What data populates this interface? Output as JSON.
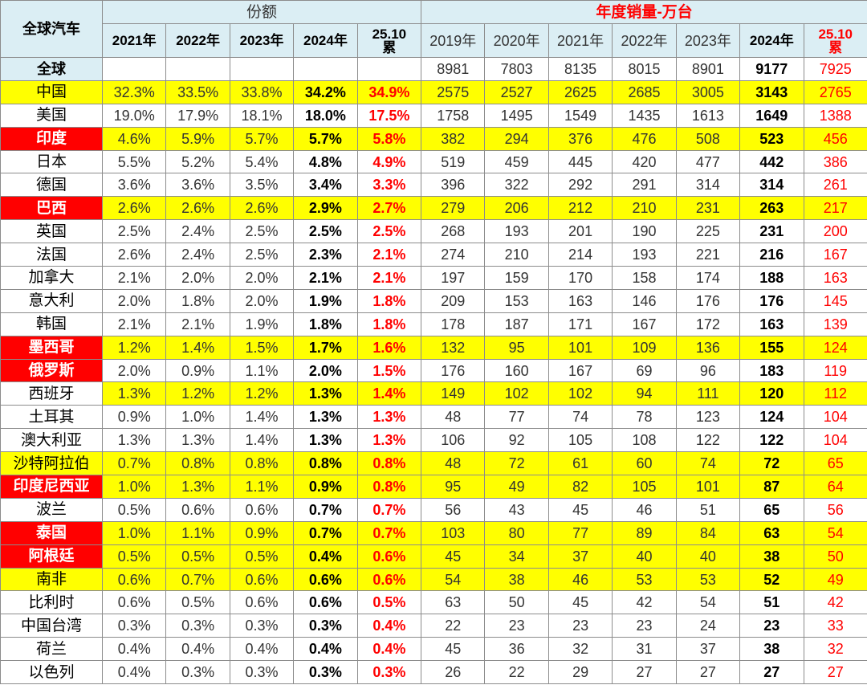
{
  "header": {
    "corner": "全球汽车",
    "share_title": "份额",
    "sales_title": "年度销量-万台",
    "share_years": [
      "2021年",
      "2022年",
      "2023年",
      "2024年",
      "25.10\n累"
    ],
    "sales_years": [
      "2019年",
      "2020年",
      "2021年",
      "2022年",
      "2023年",
      "2024年",
      "25.10\n累"
    ],
    "fill": "#dbeef4"
  },
  "world": {
    "name": "全球",
    "sales": [
      8981,
      7803,
      8135,
      8015,
      8901,
      9177,
      7925
    ]
  },
  "rows": [
    {
      "name": "中国",
      "share": [
        "32.3%",
        "33.5%",
        "33.8%",
        "34.2%",
        "34.9%"
      ],
      "sales": [
        2575,
        2527,
        2625,
        2685,
        3005,
        3143,
        2765
      ],
      "fill": "#ffff00"
    },
    {
      "name": "美国",
      "share": [
        "19.0%",
        "17.9%",
        "18.1%",
        "18.0%",
        "17.5%"
      ],
      "sales": [
        1758,
        1495,
        1549,
        1435,
        1613,
        1649,
        1388
      ]
    },
    {
      "name": "印度",
      "share": [
        "4.6%",
        "5.9%",
        "5.7%",
        "5.7%",
        "5.8%"
      ],
      "sales": [
        382,
        294,
        376,
        476,
        508,
        523,
        456
      ],
      "fill": "#ffff00",
      "name_fill": "#ff0000"
    },
    {
      "name": "日本",
      "share": [
        "5.5%",
        "5.2%",
        "5.4%",
        "4.8%",
        "4.9%"
      ],
      "sales": [
        519,
        459,
        445,
        420,
        477,
        442,
        386
      ]
    },
    {
      "name": "德国",
      "share": [
        "3.6%",
        "3.6%",
        "3.5%",
        "3.4%",
        "3.3%"
      ],
      "sales": [
        396,
        322,
        292,
        291,
        314,
        314,
        261
      ]
    },
    {
      "name": "巴西",
      "share": [
        "2.6%",
        "2.6%",
        "2.6%",
        "2.9%",
        "2.7%"
      ],
      "sales": [
        279,
        206,
        212,
        210,
        231,
        263,
        217
      ],
      "fill": "#ffff00",
      "name_fill": "#ff0000"
    },
    {
      "name": "英国",
      "share": [
        "2.5%",
        "2.4%",
        "2.5%",
        "2.5%",
        "2.5%"
      ],
      "sales": [
        268,
        193,
        201,
        190,
        225,
        231,
        200
      ]
    },
    {
      "name": "法国",
      "share": [
        "2.6%",
        "2.4%",
        "2.5%",
        "2.3%",
        "2.1%"
      ],
      "sales": [
        274,
        210,
        214,
        193,
        221,
        216,
        167
      ]
    },
    {
      "name": "加拿大",
      "share": [
        "2.1%",
        "2.0%",
        "2.0%",
        "2.1%",
        "2.1%"
      ],
      "sales": [
        197,
        159,
        170,
        158,
        174,
        188,
        163
      ]
    },
    {
      "name": "意大利",
      "share": [
        "2.0%",
        "1.8%",
        "2.0%",
        "1.9%",
        "1.8%"
      ],
      "sales": [
        209,
        153,
        163,
        146,
        176,
        176,
        145
      ]
    },
    {
      "name": "韩国",
      "share": [
        "2.1%",
        "2.1%",
        "1.9%",
        "1.8%",
        "1.8%"
      ],
      "sales": [
        178,
        187,
        171,
        167,
        172,
        163,
        139
      ]
    },
    {
      "name": "墨西哥",
      "share": [
        "1.2%",
        "1.4%",
        "1.5%",
        "1.7%",
        "1.6%"
      ],
      "sales": [
        132,
        95,
        101,
        109,
        136,
        155,
        124
      ],
      "fill": "#ffff00",
      "name_fill": "#ff0000"
    },
    {
      "name": "俄罗斯",
      "share": [
        "2.0%",
        "0.9%",
        "1.1%",
        "2.0%",
        "1.5%"
      ],
      "sales": [
        176,
        160,
        167,
        69,
        96,
        183,
        119
      ],
      "name_fill": "#ff0000"
    },
    {
      "name": "西班牙",
      "share": [
        "1.3%",
        "1.2%",
        "1.2%",
        "1.3%",
        "1.4%"
      ],
      "sales": [
        149,
        102,
        102,
        94,
        111,
        120,
        112
      ],
      "fill": "#ffff00",
      "name_fill": "#ffffff"
    },
    {
      "name": "土耳其",
      "share": [
        "0.9%",
        "1.0%",
        "1.4%",
        "1.3%",
        "1.3%"
      ],
      "sales": [
        48,
        77,
        74,
        78,
        123,
        124,
        104
      ]
    },
    {
      "name": "澳大利亚",
      "share": [
        "1.3%",
        "1.3%",
        "1.4%",
        "1.3%",
        "1.3%"
      ],
      "sales": [
        106,
        92,
        105,
        108,
        122,
        122,
        104
      ]
    },
    {
      "name": "沙特阿拉伯",
      "share": [
        "0.7%",
        "0.8%",
        "0.8%",
        "0.8%",
        "0.8%"
      ],
      "sales": [
        48,
        72,
        61,
        60,
        74,
        72,
        65
      ],
      "fill": "#ffff00"
    },
    {
      "name": "印度尼西亚",
      "share": [
        "1.0%",
        "1.3%",
        "1.1%",
        "0.9%",
        "0.8%"
      ],
      "sales": [
        95,
        49,
        82,
        105,
        101,
        87,
        64
      ],
      "fill": "#ffff00",
      "name_fill": "#ff0000"
    },
    {
      "name": "波兰",
      "share": [
        "0.5%",
        "0.6%",
        "0.6%",
        "0.7%",
        "0.7%"
      ],
      "sales": [
        56,
        43,
        45,
        46,
        51,
        65,
        56
      ]
    },
    {
      "name": "泰国",
      "share": [
        "1.0%",
        "1.1%",
        "0.9%",
        "0.7%",
        "0.7%"
      ],
      "sales": [
        103,
        80,
        77,
        89,
        84,
        63,
        54
      ],
      "fill": "#ffff00",
      "name_fill": "#ff0000"
    },
    {
      "name": "阿根廷",
      "share": [
        "0.5%",
        "0.5%",
        "0.5%",
        "0.4%",
        "0.6%"
      ],
      "sales": [
        45,
        34,
        37,
        40,
        40,
        38,
        50
      ],
      "fill": "#ffff00",
      "name_fill": "#ff0000"
    },
    {
      "name": "南非",
      "share": [
        "0.6%",
        "0.7%",
        "0.6%",
        "0.6%",
        "0.6%"
      ],
      "sales": [
        54,
        38,
        46,
        53,
        53,
        52,
        49
      ],
      "fill": "#ffff00"
    },
    {
      "name": "比利时",
      "share": [
        "0.6%",
        "0.5%",
        "0.6%",
        "0.6%",
        "0.5%"
      ],
      "sales": [
        63,
        50,
        45,
        42,
        54,
        51,
        42
      ]
    },
    {
      "name": "中国台湾",
      "share": [
        "0.3%",
        "0.3%",
        "0.3%",
        "0.3%",
        "0.4%"
      ],
      "sales": [
        22,
        23,
        23,
        23,
        24,
        23,
        33
      ]
    },
    {
      "name": "荷兰",
      "share": [
        "0.4%",
        "0.4%",
        "0.4%",
        "0.4%",
        "0.4%"
      ],
      "sales": [
        45,
        36,
        32,
        31,
        37,
        38,
        32
      ]
    },
    {
      "name": "以色列",
      "share": [
        "0.4%",
        "0.3%",
        "0.3%",
        "0.3%",
        "0.3%"
      ],
      "sales": [
        26,
        22,
        29,
        27,
        27,
        27,
        27
      ]
    }
  ]
}
